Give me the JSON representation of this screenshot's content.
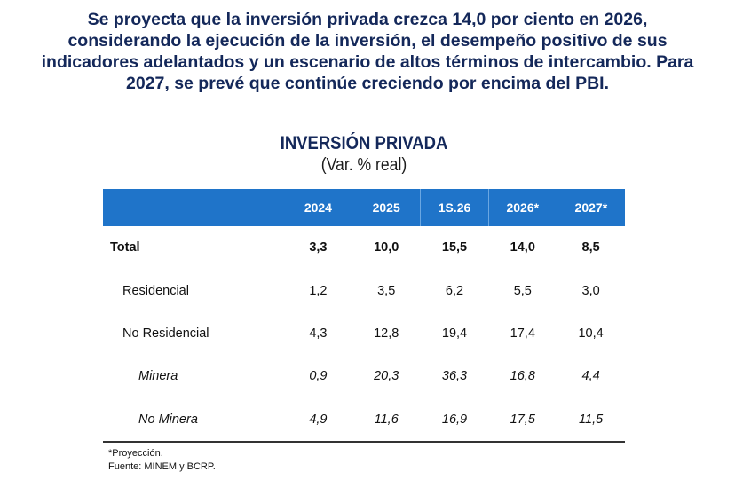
{
  "headline": {
    "lines": [
      "Se proyecta que la inversión privada crezca 14,0 por ciento en 2026,",
      "considerando la ejecución de la inversión, el desempeño positivo de sus",
      "indicadores adelantados y un escenario de altos términos de intercambio. Para",
      "2027, se prevé que continúe creciendo por encima del PBI."
    ]
  },
  "table": {
    "title": "INVERSIÓN PRIVADA",
    "subtitle": "(Var. % real)",
    "header_color": "#1f74c9",
    "columns": [
      "2024",
      "2025",
      "1S.26",
      "2026*",
      "2027*"
    ],
    "rows": [
      {
        "label": "Total",
        "level": 0,
        "values": [
          "3,3",
          "10,0",
          "15,5",
          "14,0",
          "8,5"
        ]
      },
      {
        "label": "Residencial",
        "level": 1,
        "values": [
          "1,2",
          "3,5",
          "6,2",
          "5,5",
          "3,0"
        ]
      },
      {
        "label": "No Residencial",
        "level": 1,
        "values": [
          "4,3",
          "12,8",
          "19,4",
          "17,4",
          "10,4"
        ]
      },
      {
        "label": "Minera",
        "level": 2,
        "values": [
          "0,9",
          "20,3",
          "36,3",
          "16,8",
          "4,4"
        ]
      },
      {
        "label": "No Minera",
        "level": 2,
        "values": [
          "4,9",
          "11,6",
          "16,9",
          "17,5",
          "11,5"
        ]
      }
    ]
  },
  "notes": {
    "projection": "*Proyección.",
    "source": "Fuente: MINEM y BCRP."
  }
}
